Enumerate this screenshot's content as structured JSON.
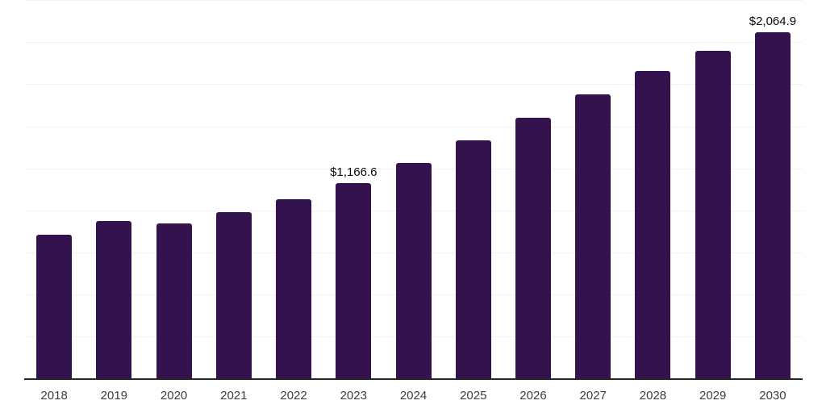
{
  "chart_data": {
    "type": "bar",
    "categories": [
      "2018",
      "2019",
      "2020",
      "2021",
      "2022",
      "2023",
      "2024",
      "2025",
      "2026",
      "2027",
      "2028",
      "2029",
      "2030"
    ],
    "values": [
      858.0,
      940.8,
      926.4,
      992.0,
      1071.9,
      1166.6,
      1285.0,
      1419.2,
      1555.2,
      1695.9,
      1832.0,
      1955.2,
      2064.9
    ],
    "labeled_points": [
      {
        "category": "2023",
        "label": "$1,166.6"
      },
      {
        "category": "2030",
        "label": "$2,064.9"
      }
    ],
    "title": "",
    "xlabel": "",
    "ylabel": "",
    "ylim": [
      0,
      2256
    ],
    "gridline_step": 250,
    "grid": "horizontal-only",
    "legend": "none",
    "y_axis_labels_visible": false
  },
  "colors": {
    "bar": "#34124D",
    "gridline": "#f2f2f2",
    "axis_line": "#262626",
    "tick_label": "#3d3d3d",
    "data_label": "#0a0a0a",
    "background": "#ffffff"
  }
}
